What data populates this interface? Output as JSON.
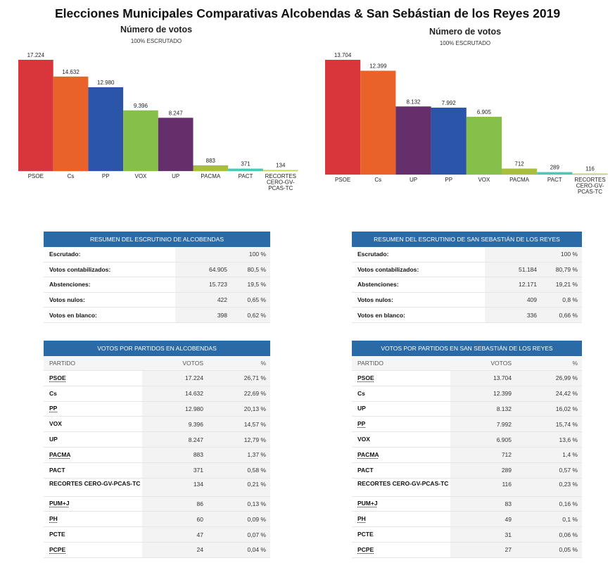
{
  "title": "Elecciones Municipales Comparativas  Alcobendas & San Sebástian de los Reyes 2019",
  "chart_data": [
    {
      "type": "bar",
      "title": "Número de votos",
      "subtitle": "100% ESCRUTADO",
      "categories": [
        "PSOE",
        "Cs",
        "PP",
        "VOX",
        "UP",
        "PACMA",
        "PACT",
        "RECORTES CERO-GV-PCAS-TC"
      ],
      "category_lines": [
        [
          "PSOE"
        ],
        [
          "Cs"
        ],
        [
          "PP"
        ],
        [
          "VOX"
        ],
        [
          "UP"
        ],
        [
          "PACMA"
        ],
        [
          "PACT"
        ],
        [
          "RECORTES",
          "CERO-GV-",
          "PCAS-TC"
        ]
      ],
      "values": [
        17224,
        14632,
        12980,
        9396,
        8247,
        883,
        371,
        134
      ],
      "value_labels": [
        "17.224",
        "14.632",
        "12.980",
        "9.396",
        "8.247",
        "883",
        "371",
        "134"
      ],
      "colors": [
        "#d8363a",
        "#e8622a",
        "#2a55a8",
        "#86c04a",
        "#642f6b",
        "#a9be3d",
        "#4fc6b6",
        "#c6d35a"
      ],
      "ylim": [
        0,
        17224
      ]
    },
    {
      "type": "bar",
      "title": "Número de votos",
      "subtitle": "100% ESCRUTADO",
      "categories": [
        "PSOE",
        "Cs",
        "UP",
        "PP",
        "VOX",
        "PACMA",
        "PACT",
        "RECORTES CERO-GV-PCAS-TC"
      ],
      "category_lines": [
        [
          "PSOE"
        ],
        [
          "Cs"
        ],
        [
          "UP"
        ],
        [
          "PP"
        ],
        [
          "VOX"
        ],
        [
          "PACMA"
        ],
        [
          "PACT"
        ],
        [
          "RECORTES",
          "CERO-GV-",
          "PCAS-TC"
        ]
      ],
      "values": [
        13704,
        12399,
        8132,
        7992,
        6905,
        712,
        289,
        116
      ],
      "value_labels": [
        "13.704",
        "12.399",
        "8.132",
        "7.992",
        "6.905",
        "712",
        "289",
        "116"
      ],
      "colors": [
        "#d8363a",
        "#e8622a",
        "#642f6b",
        "#2a55a8",
        "#86c04a",
        "#a9be3d",
        "#4fc6b6",
        "#c6d35a"
      ],
      "ylim": [
        0,
        13704
      ]
    }
  ],
  "summary_left": {
    "header": "RESUMEN DEL ESCRUTINIO DE ALCOBENDAS",
    "rows": [
      {
        "label": "Escrutado:",
        "value": "",
        "pct": "100 %"
      },
      {
        "label": "Votos contabilizados:",
        "value": "64.905",
        "pct": "80,5 %"
      },
      {
        "label": "Abstenciones:",
        "value": "15.723",
        "pct": "19,5 %"
      },
      {
        "label": "Votos nulos:",
        "value": "422",
        "pct": "0,65 %"
      },
      {
        "label": "Votos en blanco:",
        "value": "398",
        "pct": "0,62 %"
      }
    ]
  },
  "summary_right": {
    "header": "RESUMEN DEL ESCRUTINIO DE SAN SEBASTIÁN DE LOS REYES",
    "rows": [
      {
        "label": "Escrutado:",
        "value": "",
        "pct": "100 %"
      },
      {
        "label": "Votos contabilizados:",
        "value": "51.184",
        "pct": "80,79 %"
      },
      {
        "label": "Abstenciones:",
        "value": "12.171",
        "pct": "19,21 %"
      },
      {
        "label": "Votos nulos:",
        "value": "409",
        "pct": "0,8 %"
      },
      {
        "label": "Votos en blanco:",
        "value": "336",
        "pct": "0,66 %"
      }
    ]
  },
  "votes_left": {
    "header": "VOTOS POR PARTIDOS EN ALCOBENDAS",
    "col_party": "PARTIDO",
    "col_votes": "VOTOS",
    "col_pct": "%",
    "rows": [
      {
        "party": "PSOE",
        "votes": "17.224",
        "pct": "26,71 %"
      },
      {
        "party": "Cs",
        "votes": "14.632",
        "pct": "22,69 %"
      },
      {
        "party": "PP",
        "votes": "12.980",
        "pct": "20,13 %"
      },
      {
        "party": "VOX",
        "votes": "9.396",
        "pct": "14,57 %"
      },
      {
        "party": "UP",
        "votes": "8.247",
        "pct": "12,79 %"
      },
      {
        "party": "PACMA",
        "votes": "883",
        "pct": "1,37 %"
      },
      {
        "party": "PACT",
        "votes": "371",
        "pct": "0,58 %"
      },
      {
        "party": "RECORTES CERO-GV-PCAS-TC",
        "votes": "134",
        "pct": "0,21 %"
      },
      {
        "party": "PUM+J",
        "votes": "86",
        "pct": "0,13 %"
      },
      {
        "party": "PH",
        "votes": "60",
        "pct": "0,09 %"
      },
      {
        "party": "PCTE",
        "votes": "47",
        "pct": "0,07 %"
      },
      {
        "party": "PCPE",
        "votes": "24",
        "pct": "0,04 %"
      }
    ]
  },
  "votes_right": {
    "header": "VOTOS POR PARTIDOS EN SAN SEBASTIÁN DE LOS REYES",
    "col_party": "PARTIDO",
    "col_votes": "VOTOS",
    "col_pct": "%",
    "rows": [
      {
        "party": "PSOE",
        "votes": "13.704",
        "pct": "26,99 %"
      },
      {
        "party": "Cs",
        "votes": "12.399",
        "pct": "24,42 %"
      },
      {
        "party": "UP",
        "votes": "8.132",
        "pct": "16,02 %"
      },
      {
        "party": "PP",
        "votes": "7.992",
        "pct": "15,74 %"
      },
      {
        "party": "VOX",
        "votes": "6.905",
        "pct": "13,6 %"
      },
      {
        "party": "PACMA",
        "votes": "712",
        "pct": "1,4 %"
      },
      {
        "party": "PACT",
        "votes": "289",
        "pct": "0,57 %"
      },
      {
        "party": "RECORTES CERO-GV-PCAS-TC",
        "votes": "116",
        "pct": "0,23 %"
      },
      {
        "party": "PUM+J",
        "votes": "83",
        "pct": "0,16 %"
      },
      {
        "party": "PH",
        "votes": "49",
        "pct": "0,1 %"
      },
      {
        "party": "PCTE",
        "votes": "31",
        "pct": "0,06 %"
      },
      {
        "party": "PCPE",
        "votes": "27",
        "pct": "0,05 %"
      }
    ]
  }
}
